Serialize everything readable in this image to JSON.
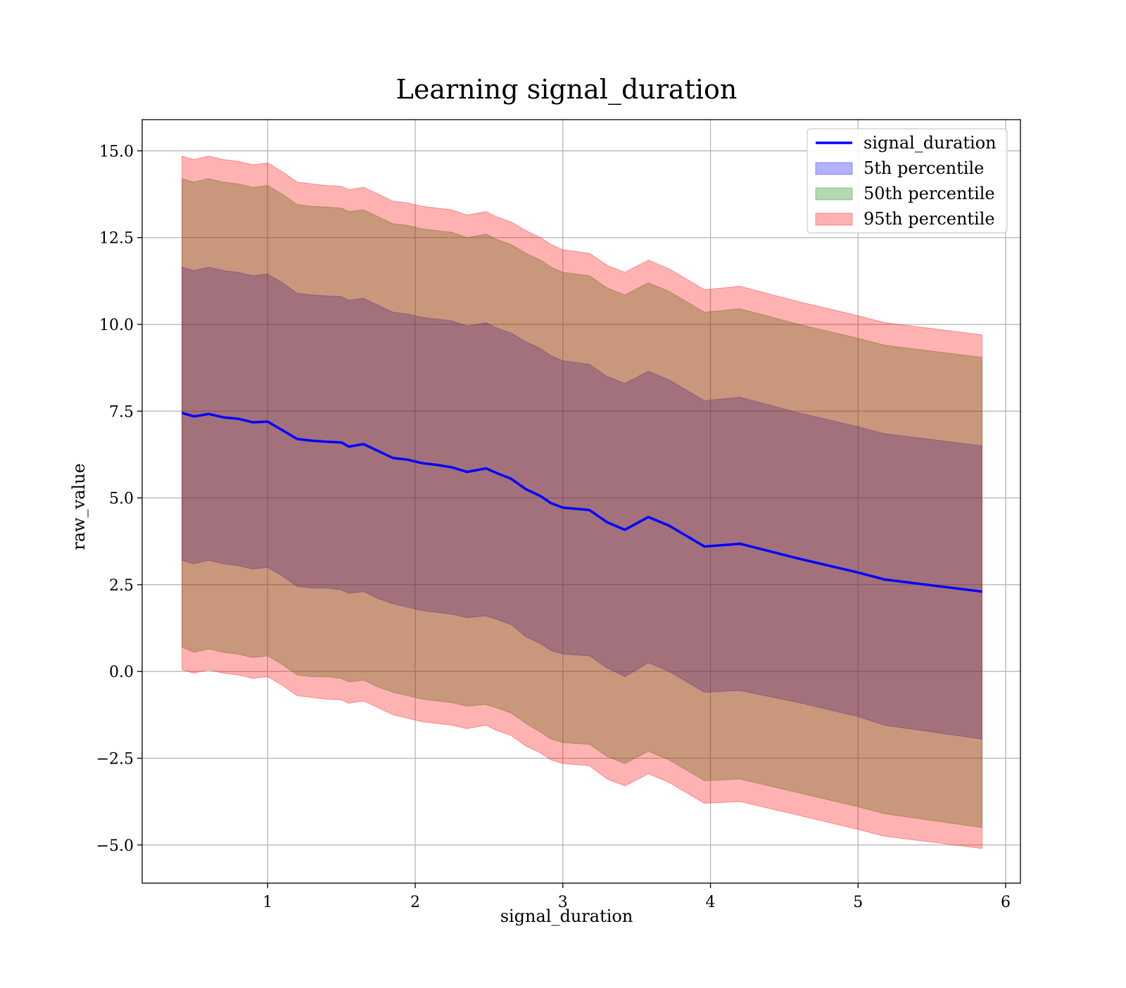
{
  "chart_data": {
    "type": "area",
    "title": "Learning signal_duration",
    "xlabel": "signal_duration",
    "ylabel": "raw_value",
    "xlim": [
      0.15,
      6.1
    ],
    "ylim": [
      -6.1,
      15.9
    ],
    "grid": true,
    "legend_position": "top-right",
    "x_ticks": [
      1,
      2,
      3,
      4,
      5,
      6
    ],
    "x_tick_labels": [
      "1",
      "2",
      "3",
      "4",
      "5",
      "6"
    ],
    "y_ticks": [
      -5,
      -2.5,
      0,
      2.5,
      5,
      7.5,
      10,
      12.5,
      15
    ],
    "y_tick_labels": [
      "−5.0",
      "−2.5",
      "0.0",
      "2.5",
      "5.0",
      "7.5",
      "10.0",
      "12.5",
      "15.0"
    ],
    "x": [
      0.42,
      0.5,
      0.55,
      0.6,
      0.7,
      0.8,
      0.9,
      1.0,
      1.1,
      1.2,
      1.3,
      1.4,
      1.5,
      1.55,
      1.65,
      1.75,
      1.85,
      1.95,
      2.05,
      2.15,
      2.25,
      2.35,
      2.48,
      2.55,
      2.65,
      2.75,
      2.85,
      2.92,
      3.0,
      3.18,
      3.3,
      3.42,
      3.58,
      3.72,
      3.96,
      4.2,
      4.6,
      5.0,
      5.18,
      5.84
    ],
    "series": [
      {
        "name": "signal_duration",
        "values": [
          7.45,
          7.35,
          7.38,
          7.42,
          7.32,
          7.28,
          7.18,
          7.2,
          6.95,
          6.7,
          6.65,
          6.62,
          6.6,
          6.48,
          6.55,
          6.35,
          6.15,
          6.1,
          6.0,
          5.95,
          5.88,
          5.75,
          5.85,
          5.72,
          5.55,
          5.25,
          5.05,
          4.85,
          4.72,
          4.65,
          4.3,
          4.08,
          4.45,
          4.2,
          3.6,
          3.68,
          3.25,
          2.85,
          2.65,
          2.3
        ],
        "color": "#0000ff"
      },
      {
        "name": "5th percentile",
        "color": "#0000ff",
        "lower": [
          3.2,
          3.1,
          3.15,
          3.2,
          3.1,
          3.05,
          2.95,
          3.0,
          2.75,
          2.45,
          2.4,
          2.4,
          2.35,
          2.25,
          2.3,
          2.1,
          1.95,
          1.85,
          1.75,
          1.7,
          1.65,
          1.55,
          1.6,
          1.5,
          1.35,
          1.0,
          0.8,
          0.6,
          0.5,
          0.45,
          0.1,
          -0.15,
          0.25,
          0.0,
          -0.6,
          -0.55,
          -0.9,
          -1.3,
          -1.55,
          -1.95
        ],
        "upper": [
          11.65,
          11.55,
          11.6,
          11.65,
          11.55,
          11.5,
          11.4,
          11.45,
          11.2,
          10.9,
          10.85,
          10.82,
          10.8,
          10.7,
          10.75,
          10.55,
          10.35,
          10.3,
          10.2,
          10.15,
          10.1,
          9.95,
          10.05,
          9.9,
          9.75,
          9.5,
          9.3,
          9.1,
          8.95,
          8.85,
          8.5,
          8.3,
          8.65,
          8.4,
          7.8,
          7.9,
          7.45,
          7.05,
          6.85,
          6.5
        ]
      },
      {
        "name": "50th percentile",
        "color": "#008000",
        "lower": [
          0.7,
          0.55,
          0.6,
          0.65,
          0.55,
          0.5,
          0.4,
          0.45,
          0.2,
          -0.1,
          -0.15,
          -0.15,
          -0.2,
          -0.3,
          -0.25,
          -0.45,
          -0.6,
          -0.7,
          -0.8,
          -0.85,
          -0.9,
          -1.0,
          -0.95,
          -1.05,
          -1.2,
          -1.5,
          -1.75,
          -1.95,
          -2.05,
          -2.1,
          -2.45,
          -2.65,
          -2.3,
          -2.55,
          -3.15,
          -3.1,
          -3.5,
          -3.9,
          -4.1,
          -4.5
        ],
        "upper": [
          14.2,
          14.1,
          14.15,
          14.2,
          14.1,
          14.05,
          13.95,
          14.0,
          13.75,
          13.45,
          13.4,
          13.38,
          13.35,
          13.25,
          13.3,
          13.1,
          12.9,
          12.85,
          12.75,
          12.7,
          12.65,
          12.5,
          12.6,
          12.45,
          12.3,
          12.05,
          11.85,
          11.65,
          11.5,
          11.4,
          11.05,
          10.85,
          11.2,
          10.95,
          10.35,
          10.45,
          10.0,
          9.6,
          9.4,
          9.05
        ]
      },
      {
        "name": "95th percentile",
        "color": "#ff0000",
        "lower": [
          0.05,
          -0.05,
          0.0,
          0.05,
          -0.05,
          -0.1,
          -0.2,
          -0.15,
          -0.4,
          -0.7,
          -0.75,
          -0.8,
          -0.82,
          -0.92,
          -0.85,
          -1.05,
          -1.25,
          -1.35,
          -1.45,
          -1.5,
          -1.55,
          -1.65,
          -1.55,
          -1.7,
          -1.85,
          -2.15,
          -2.35,
          -2.55,
          -2.65,
          -2.72,
          -3.1,
          -3.3,
          -2.95,
          -3.2,
          -3.8,
          -3.75,
          -4.15,
          -4.55,
          -4.75,
          -5.1
        ],
        "upper": [
          14.85,
          14.75,
          14.8,
          14.85,
          14.75,
          14.7,
          14.6,
          14.65,
          14.4,
          14.1,
          14.05,
          14.0,
          13.98,
          13.88,
          13.95,
          13.75,
          13.55,
          13.5,
          13.4,
          13.35,
          13.3,
          13.15,
          13.25,
          13.1,
          12.95,
          12.7,
          12.5,
          12.3,
          12.15,
          12.05,
          11.7,
          11.5,
          11.85,
          11.6,
          11.0,
          11.1,
          10.65,
          10.25,
          10.05,
          9.7
        ]
      }
    ]
  }
}
